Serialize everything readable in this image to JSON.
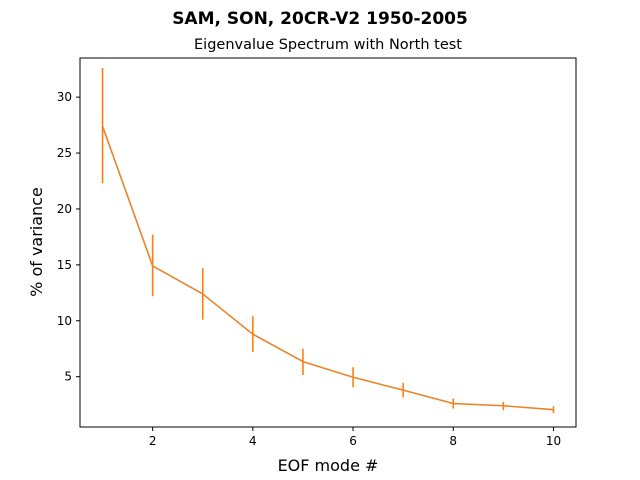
{
  "chart_data": {
    "type": "line",
    "title": "SAM, SON, 20CR-V2 1950-2005",
    "subtitle": "Eigenvalue Spectrum with North test",
    "xlabel": "EOF mode #",
    "ylabel": "% of variance",
    "xlim": [
      0.55,
      10.45
    ],
    "ylim": [
      0.5,
      33.5
    ],
    "xticks": [
      2,
      4,
      6,
      8,
      10
    ],
    "yticks": [
      5,
      10,
      15,
      20,
      25,
      30
    ],
    "grid": false,
    "series": [
      {
        "x": [
          1,
          2,
          3,
          4,
          5,
          6,
          7,
          8,
          9,
          10
        ],
        "y": [
          27.4,
          14.9,
          12.4,
          8.8,
          6.35,
          4.95,
          3.8,
          2.6,
          2.4,
          2.05
        ],
        "yerr_low": [
          22.3,
          12.2,
          10.1,
          7.2,
          5.15,
          4.05,
          3.15,
          2.15,
          2.0,
          1.75
        ],
        "yerr_high": [
          32.6,
          17.7,
          14.7,
          10.4,
          7.5,
          5.85,
          4.45,
          3.05,
          2.75,
          2.35
        ],
        "color": "#ff7f0e",
        "line_color": "#e8842a"
      }
    ]
  }
}
